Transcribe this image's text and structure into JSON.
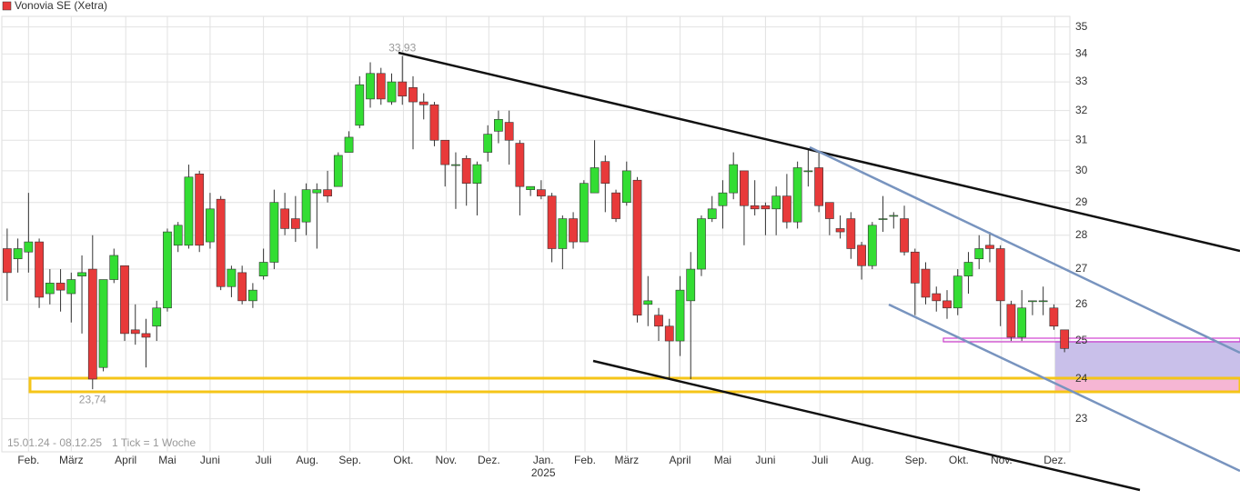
{
  "chart_data": {
    "type": "candlestick",
    "name": "Vonovia SE (Xetra)",
    "up_color": "#33dd33",
    "down_color": "#e83a3a",
    "open": [
      27.6,
      27.3,
      27.5,
      27.8,
      26.3,
      26.6,
      26.3,
      26.8,
      27.0,
      24.3,
      26.7,
      27.1,
      25.3,
      25.2,
      25.4,
      25.9,
      27.7,
      27.7,
      29.9,
      27.8,
      29.1,
      26.5,
      26.9,
      26.1,
      26.8,
      27.2,
      28.8,
      28.5,
      28.4,
      29.3,
      29.4,
      29.5,
      30.6,
      31.5,
      32.4,
      33.3,
      32.3,
      33.0,
      32.8,
      32.3,
      32.2,
      31.0,
      30.2,
      30.4,
      29.6,
      30.6,
      31.3,
      31.6,
      30.9,
      29.4,
      29.4,
      29.2,
      27.6,
      28.5,
      27.8,
      29.3,
      30.3,
      29.3,
      29.0,
      29.7,
      26.0,
      25.7,
      25.4,
      25.0,
      26.1,
      27.0,
      28.5,
      28.9,
      29.3,
      30.0,
      28.9,
      28.9,
      28.8,
      29.2,
      28.4,
      30.0,
      30.1,
      29.0,
      28.2,
      28.5,
      27.7,
      27.1,
      28.5,
      28.6,
      28.5,
      27.5,
      27.0,
      26.3,
      26.1,
      25.9,
      26.8,
      27.3,
      27.7,
      27.6,
      26.0,
      25.1,
      26.1,
      26.1,
      25.9,
      25.3
    ],
    "high": [
      28.2,
      27.9,
      29.3,
      27.9,
      27.0,
      27.0,
      26.9,
      27.4,
      28.0,
      26.7,
      27.6,
      27.1,
      26.0,
      25.6,
      26.1,
      28.2,
      28.4,
      30.2,
      30.0,
      29.3,
      29.2,
      27.1,
      27.1,
      26.6,
      27.6,
      29.4,
      29.3,
      29.2,
      29.6,
      29.6,
      30.0,
      30.6,
      31.3,
      33.2,
      33.7,
      33.5,
      33.3,
      33.93,
      33.2,
      32.6,
      32.3,
      31.0,
      30.6,
      30.5,
      30.3,
      31.5,
      32.0,
      32.0,
      31.0,
      29.5,
      29.7,
      29.3,
      28.6,
      28.7,
      29.7,
      31.0,
      30.5,
      29.4,
      30.3,
      29.8,
      26.8,
      25.9,
      25.6,
      26.8,
      27.5,
      28.6,
      29.2,
      29.7,
      30.6,
      30.0,
      29.7,
      29.0,
      29.5,
      29.9,
      30.3,
      30.7,
      30.6,
      29.0,
      28.6,
      28.7,
      27.8,
      28.4,
      29.2,
      28.7,
      28.9,
      27.6,
      27.2,
      26.5,
      26.4,
      27.0,
      27.5,
      28.0,
      28.1,
      27.7,
      26.1,
      26.4,
      26.1,
      26.5,
      26.0,
      25.3
    ],
    "low": [
      26.1,
      26.9,
      26.9,
      25.9,
      26.0,
      25.8,
      25.5,
      25.2,
      23.74,
      24.2,
      26.6,
      25.0,
      24.9,
      24.3,
      25.0,
      25.8,
      27.5,
      27.6,
      27.5,
      27.6,
      26.4,
      26.2,
      26.0,
      25.9,
      26.7,
      27.0,
      28.0,
      27.8,
      28.0,
      27.6,
      29.0,
      29.5,
      30.6,
      31.4,
      32.1,
      32.2,
      32.2,
      32.2,
      30.7,
      31.7,
      30.8,
      29.5,
      28.8,
      28.9,
      28.6,
      30.3,
      30.9,
      30.2,
      28.6,
      29.2,
      29.1,
      27.2,
      27.0,
      27.6,
      27.8,
      29.3,
      28.7,
      28.4,
      28.9,
      25.5,
      25.4,
      25.0,
      24.0,
      24.6,
      24.0,
      26.8,
      28.4,
      28.2,
      29.1,
      27.7,
      28.6,
      28.0,
      28.0,
      28.2,
      28.2,
      29.5,
      28.7,
      28.0,
      27.9,
      27.3,
      26.7,
      27.0,
      28.1,
      28.2,
      27.4,
      25.7,
      26.0,
      25.8,
      25.6,
      25.7,
      26.3,
      27.0,
      27.2,
      25.4,
      25.0,
      25.0,
      25.7,
      25.7,
      25.3,
      24.7
    ],
    "close": [
      26.9,
      27.6,
      27.8,
      26.2,
      26.6,
      26.4,
      26.7,
      26.9,
      24.0,
      26.7,
      27.4,
      25.2,
      25.2,
      25.1,
      25.9,
      28.1,
      28.3,
      29.8,
      27.7,
      28.8,
      26.5,
      27.0,
      26.1,
      26.4,
      27.2,
      29.0,
      28.2,
      28.2,
      29.4,
      29.4,
      29.2,
      30.5,
      31.1,
      32.9,
      33.3,
      32.4,
      33.0,
      32.5,
      32.3,
      32.2,
      31.0,
      30.2,
      30.2,
      29.6,
      30.2,
      31.2,
      31.7,
      31.0,
      29.5,
      29.5,
      29.2,
      27.6,
      28.5,
      27.8,
      29.6,
      30.1,
      29.6,
      28.5,
      30.0,
      25.7,
      26.1,
      25.4,
      25.0,
      26.4,
      27.0,
      28.5,
      28.8,
      29.3,
      30.2,
      28.9,
      28.8,
      28.8,
      29.2,
      28.4,
      30.1,
      30.0,
      28.9,
      28.5,
      28.1,
      27.6,
      27.1,
      28.3,
      28.5,
      28.6,
      27.5,
      26.6,
      26.2,
      26.1,
      25.9,
      26.8,
      27.2,
      27.6,
      27.6,
      26.1,
      25.1,
      25.9,
      26.1,
      26.1,
      25.4,
      24.8
    ],
    "max_label": "33,93",
    "min_label": "23,74",
    "log_scale": true,
    "grid": true,
    "ylim": [
      22.2,
      35.4
    ],
    "yticks": [
      23,
      24,
      25,
      26,
      27,
      28,
      29,
      30,
      31,
      32,
      33,
      34,
      35
    ],
    "xlim": [
      -0.5,
      99.5
    ],
    "xticks": [
      {
        "value": 2,
        "label": "Feb."
      },
      {
        "value": 6,
        "label": "März"
      },
      {
        "value": 11.1,
        "label": "April"
      },
      {
        "value": 15,
        "label": "Mai"
      },
      {
        "value": 19,
        "label": "Juni"
      },
      {
        "value": 24,
        "label": "Juli"
      },
      {
        "value": 28.1,
        "label": "Aug."
      },
      {
        "value": 32.1,
        "label": "Sep."
      },
      {
        "value": 37.1,
        "label": "Okt."
      },
      {
        "value": 41.1,
        "label": "Nov."
      },
      {
        "value": 45.1,
        "label": "Dez."
      },
      {
        "value": 50.2,
        "label": "Jan."
      },
      {
        "value": 54.1,
        "label": "Feb."
      },
      {
        "value": 58,
        "label": "März"
      },
      {
        "value": 63,
        "label": "April"
      },
      {
        "value": 67,
        "label": "Mai"
      },
      {
        "value": 71,
        "label": "Juni"
      },
      {
        "value": 76.1,
        "label": "Juli"
      },
      {
        "value": 80.1,
        "label": "Aug."
      },
      {
        "value": 85.1,
        "label": "Sep."
      },
      {
        "value": 89.1,
        "label": "Okt."
      },
      {
        "value": 93.1,
        "label": "Nov."
      },
      {
        "value": 98.1,
        "label": "Dez."
      }
    ],
    "year_label": "2025",
    "period": "15.01.24 - 08.12.25",
    "tick_note": "1 Tick = 1 Woche"
  }
}
